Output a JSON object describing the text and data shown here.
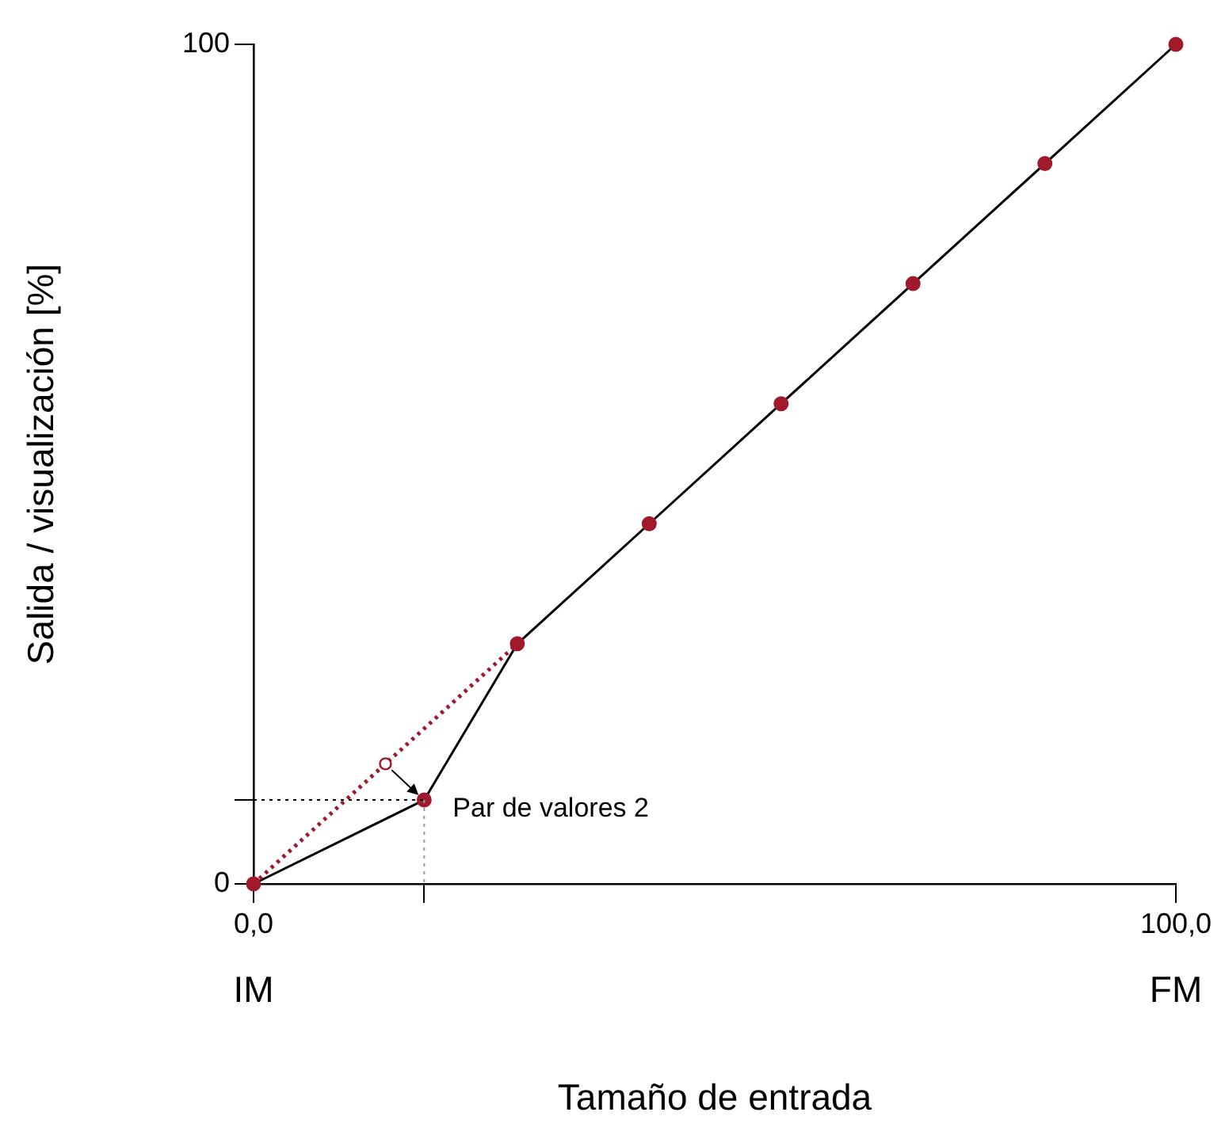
{
  "chart_data": {
    "type": "line",
    "xlabel": "Tamaño de entrada",
    "ylabel": "Salida / visualización [%]",
    "xlim": [
      0,
      100
    ],
    "xticks": [
      {
        "value": 0,
        "label": "0,0"
      },
      {
        "value": 18.5,
        "label": null
      },
      {
        "value": 100,
        "label": "100,0"
      }
    ],
    "ylim": [
      0,
      100
    ],
    "yticks": [
      0,
      {
        "value": 10,
        "label": null
      },
      100
    ],
    "grid": false,
    "legend": false,
    "series": [
      {
        "color": "#000000",
        "marker": "circle",
        "colors": [
          "#a01a2c",
          "#a01a2c",
          "#a01a2c",
          "#a01a2c",
          "#a01a2c",
          "#a01a2c",
          "#a01a2c",
          "#a01a2c"
        ],
        "x": [
          0,
          18.5,
          28.6,
          42.9,
          57.2,
          71.5,
          85.8,
          100
        ],
        "values": [
          0,
          10,
          28.6,
          42.9,
          57.2,
          71.5,
          85.8,
          100
        ]
      },
      {
        "color": "#a01a2c",
        "line_style": "dotted",
        "marker": "none",
        "x": [
          0,
          28.6
        ],
        "values": [
          0,
          28.6
        ]
      },
      {
        "type": "scatter",
        "color": "#a01a2c",
        "marker": "circle",
        "x": [
          14.3
        ],
        "values": [
          14.3
        ]
      }
    ],
    "ref_lines": [
      {
        "axis": "x",
        "value": 18.5,
        "color": "#999999",
        "line_style": "dotted"
      },
      {
        "axis": "y",
        "value": 10,
        "color": "#000000",
        "line_style": "dotted"
      }
    ],
    "annotations": [
      {
        "text": "Par de valores 2",
        "x": 18.5,
        "y": 10
      },
      "IM",
      "FM"
    ]
  }
}
